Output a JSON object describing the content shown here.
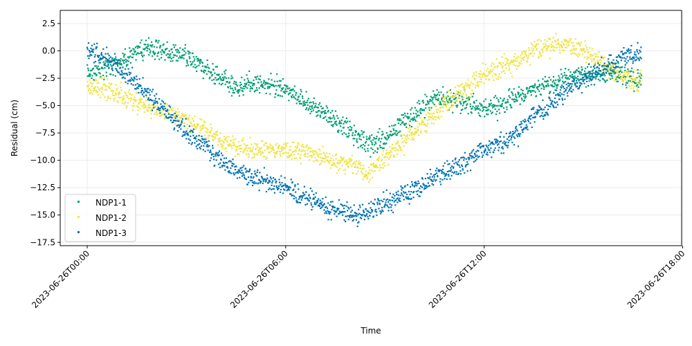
{
  "chart_data": {
    "type": "scatter",
    "title": "",
    "xlabel": "Time",
    "ylabel": "Residual (cm)",
    "x_ticks": [
      "2023-06-26T00:00",
      "2023-06-26T06:00",
      "2023-06-26T12:00",
      "2023-06-26T18:00"
    ],
    "x_range": [
      "2023-06-26T00:00",
      "2023-06-26T18:00"
    ],
    "x_data_span": [
      "2023-06-26T00:00",
      "2023-06-26T16:45"
    ],
    "y_ticks": [
      2.5,
      0.0,
      -2.5,
      -5.0,
      -7.5,
      -10.0,
      -12.5,
      -15.0,
      -17.5
    ],
    "y_tick_labels": [
      "2.5",
      "0.0",
      "−2.5",
      "−5.0",
      "−7.5",
      "−10.0",
      "−12.5",
      "−15.0",
      "−17.5"
    ],
    "ylim": [
      -17.8,
      3.7
    ],
    "grid": true,
    "legend_position": "lower-left",
    "series": [
      {
        "name": "NDP1-1",
        "color": "#009e73",
        "spread_cm": 0.8,
        "trend": [
          [
            "2023-06-26T00:00",
            -2.0
          ],
          [
            "2023-06-26T01:00",
            -1.0
          ],
          [
            "2023-06-26T01:30",
            0.0
          ],
          [
            "2023-06-26T02:00",
            0.3
          ],
          [
            "2023-06-26T02:30",
            -0.3
          ],
          [
            "2023-06-26T03:00",
            -0.5
          ],
          [
            "2023-06-26T03:30",
            -1.5
          ],
          [
            "2023-06-26T04:00",
            -2.5
          ],
          [
            "2023-06-26T04:30",
            -3.2
          ],
          [
            "2023-06-26T05:00",
            -3.0
          ],
          [
            "2023-06-26T06:00",
            -3.5
          ],
          [
            "2023-06-26T07:00",
            -5.5
          ],
          [
            "2023-06-26T08:00",
            -7.5
          ],
          [
            "2023-06-26T08:30",
            -8.5
          ],
          [
            "2023-06-26T09:00",
            -8.2
          ],
          [
            "2023-06-26T09:30",
            -6.5
          ],
          [
            "2023-06-26T10:00",
            -5.5
          ],
          [
            "2023-06-26T10:30",
            -4.3
          ],
          [
            "2023-06-26T11:00",
            -4.5
          ],
          [
            "2023-06-26T11:30",
            -4.8
          ],
          [
            "2023-06-26T12:00",
            -5.3
          ],
          [
            "2023-06-26T12:30",
            -5.0
          ],
          [
            "2023-06-26T13:00",
            -4.2
          ],
          [
            "2023-06-26T13:30",
            -3.5
          ],
          [
            "2023-06-26T14:00",
            -3.0
          ],
          [
            "2023-06-26T14:30",
            -2.5
          ],
          [
            "2023-06-26T15:00",
            -2.2
          ],
          [
            "2023-06-26T15:30",
            -2.0
          ],
          [
            "2023-06-26T16:00",
            -2.2
          ],
          [
            "2023-06-26T16:45",
            -2.5
          ]
        ]
      },
      {
        "name": "NDP1-2",
        "color": "#f0e442",
        "spread_cm": 0.8,
        "trend": [
          [
            "2023-06-26T00:00",
            -3.2
          ],
          [
            "2023-06-26T00:30",
            -3.5
          ],
          [
            "2023-06-26T01:00",
            -4.0
          ],
          [
            "2023-06-26T01:30",
            -4.8
          ],
          [
            "2023-06-26T02:00",
            -5.3
          ],
          [
            "2023-06-26T02:30",
            -5.8
          ],
          [
            "2023-06-26T03:00",
            -6.3
          ],
          [
            "2023-06-26T03:30",
            -7.0
          ],
          [
            "2023-06-26T04:00",
            -8.0
          ],
          [
            "2023-06-26T04:30",
            -8.8
          ],
          [
            "2023-06-26T05:00",
            -9.0
          ],
          [
            "2023-06-26T06:00",
            -9.0
          ],
          [
            "2023-06-26T07:00",
            -9.5
          ],
          [
            "2023-06-26T08:00",
            -10.5
          ],
          [
            "2023-06-26T08:30",
            -11.2
          ],
          [
            "2023-06-26T09:00",
            -9.8
          ],
          [
            "2023-06-26T09:30",
            -8.5
          ],
          [
            "2023-06-26T10:00",
            -7.0
          ],
          [
            "2023-06-26T10:30",
            -5.8
          ],
          [
            "2023-06-26T11:00",
            -4.5
          ],
          [
            "2023-06-26T11:30",
            -3.5
          ],
          [
            "2023-06-26T12:00",
            -2.2
          ],
          [
            "2023-06-26T12:30",
            -1.5
          ],
          [
            "2023-06-26T13:00",
            -1.0
          ],
          [
            "2023-06-26T13:30",
            0.0
          ],
          [
            "2023-06-26T14:00",
            0.5
          ],
          [
            "2023-06-26T14:30",
            0.5
          ],
          [
            "2023-06-26T15:00",
            0.0
          ],
          [
            "2023-06-26T15:30",
            -1.0
          ],
          [
            "2023-06-26T16:00",
            -2.0
          ],
          [
            "2023-06-26T16:45",
            -3.0
          ]
        ]
      },
      {
        "name": "NDP1-3",
        "color": "#0072b2",
        "spread_cm": 0.8,
        "trend": [
          [
            "2023-06-26T00:00",
            0.3
          ],
          [
            "2023-06-26T00:30",
            -0.5
          ],
          [
            "2023-06-26T01:00",
            -1.5
          ],
          [
            "2023-06-26T01:30",
            -3.0
          ],
          [
            "2023-06-26T02:00",
            -4.5
          ],
          [
            "2023-06-26T02:30",
            -6.0
          ],
          [
            "2023-06-26T03:00",
            -7.5
          ],
          [
            "2023-06-26T03:30",
            -8.5
          ],
          [
            "2023-06-26T04:00",
            -10.0
          ],
          [
            "2023-06-26T04:30",
            -11.0
          ],
          [
            "2023-06-26T05:00",
            -11.5
          ],
          [
            "2023-06-26T06:00",
            -12.5
          ],
          [
            "2023-06-26T07:00",
            -14.0
          ],
          [
            "2023-06-26T08:00",
            -15.0
          ],
          [
            "2023-06-26T08:30",
            -14.8
          ],
          [
            "2023-06-26T09:00",
            -14.0
          ],
          [
            "2023-06-26T10:00",
            -12.5
          ],
          [
            "2023-06-26T10:30",
            -11.5
          ],
          [
            "2023-06-26T11:00",
            -10.8
          ],
          [
            "2023-06-26T11:30",
            -10.0
          ],
          [
            "2023-06-26T12:00",
            -9.0
          ],
          [
            "2023-06-26T12:30",
            -8.5
          ],
          [
            "2023-06-26T13:00",
            -7.5
          ],
          [
            "2023-06-26T13:30",
            -6.0
          ],
          [
            "2023-06-26T14:00",
            -5.0
          ],
          [
            "2023-06-26T14:30",
            -3.5
          ],
          [
            "2023-06-26T15:00",
            -2.5
          ],
          [
            "2023-06-26T15:30",
            -1.8
          ],
          [
            "2023-06-26T16:00",
            -0.8
          ],
          [
            "2023-06-26T16:45",
            0.0
          ]
        ]
      }
    ]
  }
}
